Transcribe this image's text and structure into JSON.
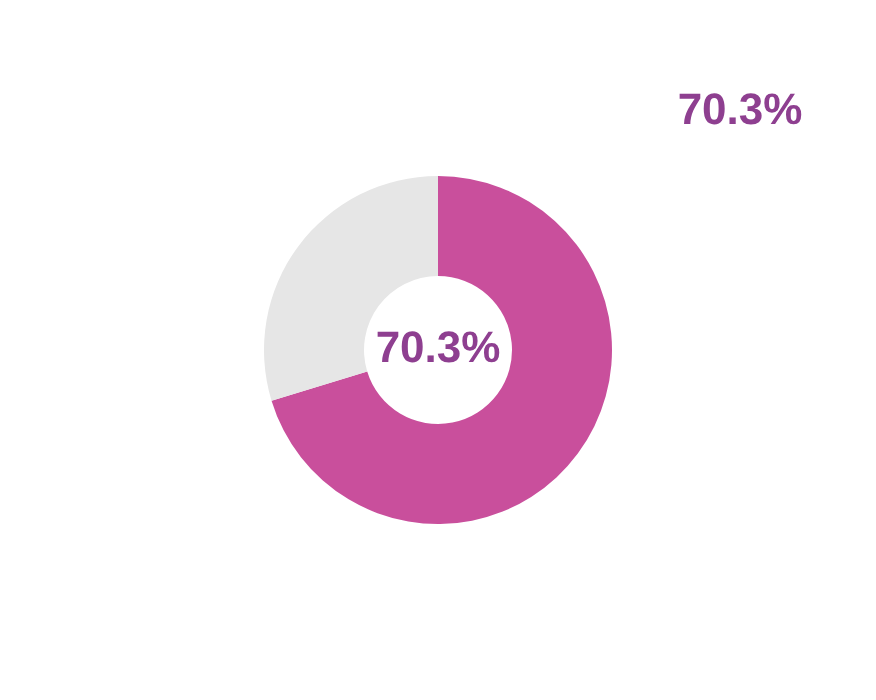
{
  "chart_data": {
    "type": "donut",
    "categories": [
      null,
      null
    ],
    "values": [
      70.3,
      29.7
    ],
    "colors": [
      "#c94f9c",
      "#e6e6e6"
    ],
    "annotations": [
      "70.3%",
      "70.3%"
    ]
  }
}
